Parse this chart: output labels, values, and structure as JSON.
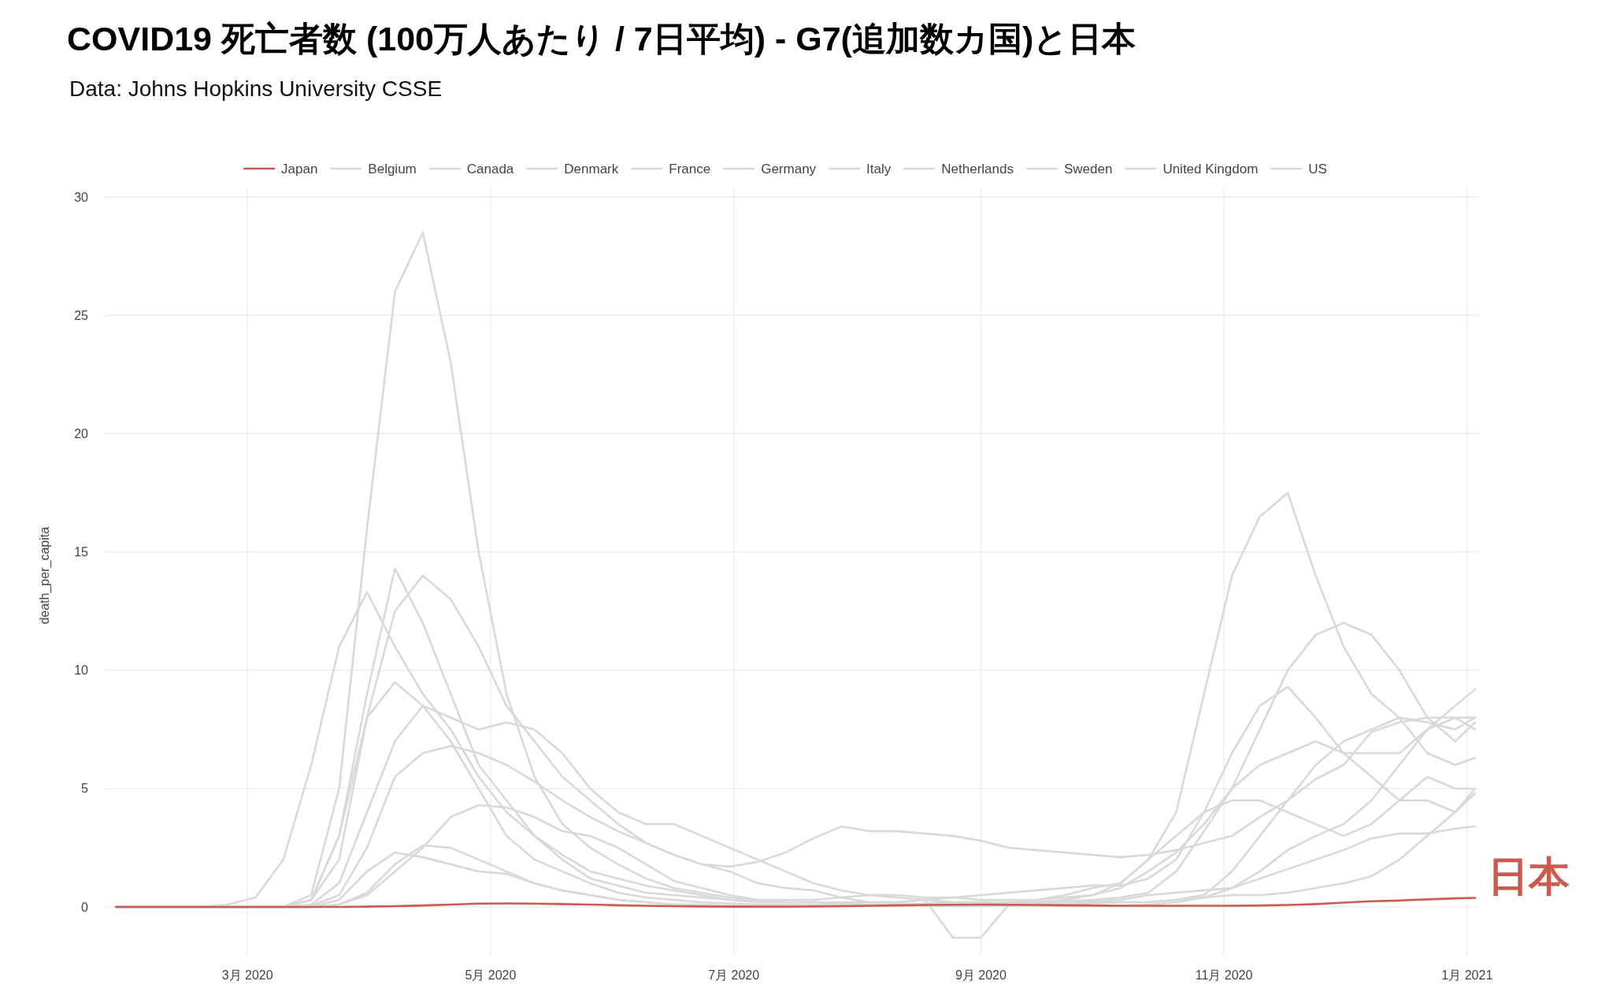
{
  "chart_data": {
    "type": "line",
    "title": "COVID19 死亡者数 (100万人あたり / 7日平均) - G7(追加数カ国)と日本",
    "subtitle": "Data: Johns Hopkins University CSSE",
    "ylabel": "death_per_capita",
    "x": [
      "2020-01-28",
      "2020-02-04",
      "2020-02-11",
      "2020-02-18",
      "2020-02-25",
      "2020-03-03",
      "2020-03-10",
      "2020-03-17",
      "2020-03-24",
      "2020-03-31",
      "2020-04-07",
      "2020-04-14",
      "2020-04-21",
      "2020-04-28",
      "2020-05-05",
      "2020-05-12",
      "2020-05-19",
      "2020-05-26",
      "2020-06-02",
      "2020-06-09",
      "2020-06-16",
      "2020-06-23",
      "2020-06-30",
      "2020-07-07",
      "2020-07-14",
      "2020-07-21",
      "2020-07-28",
      "2020-08-04",
      "2020-08-11",
      "2020-08-18",
      "2020-08-25",
      "2020-09-01",
      "2020-09-08",
      "2020-09-15",
      "2020-09-22",
      "2020-09-29",
      "2020-10-06",
      "2020-10-13",
      "2020-10-20",
      "2020-10-27",
      "2020-11-03",
      "2020-11-10",
      "2020-11-17",
      "2020-11-24",
      "2020-12-01",
      "2020-12-08",
      "2020-12-15",
      "2020-12-22",
      "2020-12-29",
      "2021-01-03"
    ],
    "series": [
      {
        "name": "Japan",
        "color": "#cd5a4e",
        "values": [
          0,
          0,
          0,
          0,
          0,
          0,
          0,
          0,
          0,
          0.01,
          0.03,
          0.06,
          0.1,
          0.14,
          0.15,
          0.14,
          0.12,
          0.1,
          0.07,
          0.05,
          0.03,
          0.02,
          0.01,
          0.01,
          0.01,
          0.02,
          0.03,
          0.05,
          0.07,
          0.08,
          0.09,
          0.1,
          0.09,
          0.08,
          0.07,
          0.06,
          0.05,
          0.05,
          0.05,
          0.05,
          0.05,
          0.06,
          0.08,
          0.12,
          0.18,
          0.24,
          0.27,
          0.32,
          0.36,
          0.38
        ]
      },
      {
        "name": "Belgium",
        "color": "#d9d9d9",
        "values": [
          0,
          0,
          0,
          0,
          0,
          0,
          0,
          0.5,
          5,
          16,
          26,
          28.5,
          23,
          15,
          9,
          5.5,
          3.5,
          2.5,
          1.8,
          1.2,
          0.8,
          0.6,
          0.4,
          0.3,
          0.3,
          0.3,
          0.4,
          0.5,
          0.5,
          0.4,
          0.4,
          0.3,
          0.3,
          0.3,
          0.5,
          0.8,
          1,
          2,
          4,
          9,
          14,
          16.5,
          17.5,
          14,
          11,
          9,
          8,
          6.5,
          6,
          6.3
        ]
      },
      {
        "name": "Canada",
        "color": "#d9d9d9",
        "values": [
          0,
          0,
          0,
          0,
          0,
          0,
          0,
          0,
          0.1,
          0.5,
          1.5,
          2.5,
          3.8,
          4.3,
          4.2,
          3.8,
          3.2,
          3,
          2.5,
          1.8,
          1.1,
          0.8,
          0.5,
          0.3,
          0.2,
          0.2,
          0.15,
          0.1,
          0.1,
          0.1,
          0.1,
          0.1,
          0.1,
          0.15,
          0.2,
          0.25,
          0.3,
          0.5,
          0.6,
          0.7,
          0.8,
          1.2,
          1.6,
          2,
          2.4,
          2.9,
          3.1,
          3.1,
          3.3,
          3.4
        ]
      },
      {
        "name": "Denmark",
        "color": "#d9d9d9",
        "values": [
          0,
          0,
          0,
          0,
          0,
          0,
          0,
          0,
          0.3,
          1.5,
          2.3,
          2.1,
          1.8,
          1.5,
          1.4,
          1,
          0.7,
          0.5,
          0.3,
          0.2,
          0.1,
          0.1,
          0.05,
          0.05,
          0.05,
          0.05,
          0.05,
          0.05,
          0.05,
          0.05,
          0.05,
          0.05,
          0.1,
          0.1,
          0.1,
          0.15,
          0.2,
          0.2,
          0.3,
          0.4,
          0.5,
          0.5,
          0.6,
          0.8,
          1,
          1.3,
          2,
          3,
          4,
          5
        ]
      },
      {
        "name": "France",
        "color": "#d9d9d9",
        "values": [
          0,
          0,
          0,
          0,
          0,
          0,
          0,
          0.3,
          3,
          9,
          14.3,
          12,
          9,
          6,
          4.5,
          3,
          2,
          1.2,
          0.9,
          0.6,
          0.5,
          0.4,
          0.3,
          0.3,
          0.2,
          0.2,
          0.2,
          0.2,
          0.2,
          0.3,
          0.4,
          0.5,
          0.6,
          0.7,
          0.8,
          0.9,
          0.9,
          1.2,
          2,
          4,
          6.5,
          8.5,
          9.3,
          8,
          6.5,
          5.5,
          4.5,
          4.5,
          4,
          4.8
        ]
      },
      {
        "name": "Germany",
        "color": "#d9d9d9",
        "values": [
          0,
          0,
          0,
          0,
          0,
          0,
          0,
          0,
          0.1,
          0.6,
          1.8,
          2.6,
          2.5,
          2,
          1.5,
          1,
          0.7,
          0.5,
          0.3,
          0.2,
          0.1,
          0.1,
          0.05,
          0.05,
          0.05,
          0.05,
          0.05,
          0.05,
          0.05,
          0.05,
          0.05,
          0.05,
          0.05,
          0.05,
          0.05,
          0.05,
          0.05,
          0.1,
          0.2,
          0.4,
          0.8,
          1.5,
          2.4,
          3,
          3.5,
          4.5,
          6,
          7.5,
          8,
          8
        ]
      },
      {
        "name": "Italy",
        "color": "#d9d9d9",
        "values": [
          0,
          0,
          0,
          0,
          0.1,
          0.4,
          2,
          6,
          11,
          13.3,
          11,
          9,
          7.5,
          5.5,
          4,
          3,
          2.2,
          1.5,
          1.2,
          0.9,
          0.7,
          0.5,
          0.3,
          0.2,
          0.2,
          0.2,
          0.15,
          0.1,
          0.1,
          0.1,
          0.15,
          0.15,
          0.15,
          0.2,
          0.25,
          0.3,
          0.4,
          0.6,
          1.5,
          3.2,
          5,
          7.5,
          10,
          11.5,
          12,
          11.5,
          10,
          8,
          8,
          7.5
        ]
      },
      {
        "name": "Netherlands",
        "color": "#d9d9d9",
        "values": [
          0,
          0,
          0,
          0,
          0,
          0,
          0,
          0.3,
          3,
          8,
          9.5,
          8.5,
          7,
          5,
          3,
          2,
          1.5,
          1,
          0.6,
          0.4,
          0.3,
          0.2,
          0.15,
          0.1,
          0.1,
          0.1,
          0.1,
          0.1,
          0.1,
          0.15,
          0.2,
          0.2,
          0.2,
          0.3,
          0.4,
          0.5,
          1,
          2,
          3,
          4,
          4.5,
          4.5,
          4,
          3.5,
          3,
          3.5,
          4.5,
          5.5,
          5,
          5
        ]
      },
      {
        "name": "Sweden",
        "color": "#d9d9d9",
        "values": [
          0,
          0,
          0,
          0,
          0,
          0,
          0,
          0.1,
          1,
          4,
          7,
          8.5,
          8,
          7.5,
          7.8,
          7.5,
          6.5,
          5,
          4,
          3.5,
          3.5,
          3,
          2.5,
          2,
          1.5,
          1,
          0.7,
          0.5,
          0.4,
          0.3,
          0.2,
          0.2,
          0.2,
          0.2,
          0.2,
          0.2,
          0.2,
          0.2,
          0.3,
          0.5,
          1.5,
          3,
          4.5,
          6,
          7,
          7.5,
          8,
          7.8,
          7.5,
          8
        ]
      },
      {
        "name": "United Kingdom",
        "color": "#d9d9d9",
        "values": [
          0,
          0,
          0,
          0,
          0,
          0,
          0,
          0.3,
          2,
          8,
          12.5,
          14,
          13,
          11,
          8.5,
          7,
          5.5,
          4.5,
          3.5,
          2.7,
          2.2,
          1.8,
          1.5,
          1,
          0.8,
          0.7,
          0.4,
          0.2,
          0.2,
          0.3,
          -1.3,
          -1.3,
          0.1,
          0.2,
          0.3,
          0.5,
          0.8,
          1.5,
          2.3,
          3.5,
          5,
          6,
          6.5,
          7,
          6.5,
          6.5,
          6.5,
          7.5,
          8.5,
          9.2
        ]
      },
      {
        "name": "US",
        "color": "#d9d9d9",
        "values": [
          0,
          0,
          0,
          0,
          0,
          0,
          0,
          0.05,
          0.5,
          2.5,
          5.5,
          6.5,
          6.8,
          6.5,
          6,
          5.3,
          4.5,
          3.8,
          3.2,
          2.7,
          2.2,
          1.8,
          1.7,
          1.9,
          2.3,
          2.9,
          3.4,
          3.2,
          3.2,
          3.1,
          3,
          2.8,
          2.5,
          2.4,
          2.3,
          2.2,
          2.1,
          2.2,
          2.4,
          2.7,
          3,
          3.8,
          4.5,
          5.4,
          6,
          7.4,
          7.8,
          8,
          7,
          7.8
        ]
      }
    ],
    "xlim": [
      "2020-01-25",
      "2021-01-04"
    ],
    "xticks": [
      {
        "value": "2020-03-01",
        "label": "3月 2020"
      },
      {
        "value": "2020-05-01",
        "label": "5月 2020"
      },
      {
        "value": "2020-07-01",
        "label": "7月 2020"
      },
      {
        "value": "2020-09-01",
        "label": "9月 2020"
      },
      {
        "value": "2020-11-01",
        "label": "11月 2020"
      },
      {
        "value": "2021-01-01",
        "label": "1月 2021"
      }
    ],
    "ylim": [
      -2,
      30
    ],
    "yticks": [
      0,
      5,
      10,
      15,
      20,
      25,
      30
    ],
    "grid": true,
    "legend": "top",
    "annotations": [
      {
        "text": "日本",
        "x": "2021-01-03",
        "y": 0.38
      }
    ]
  }
}
